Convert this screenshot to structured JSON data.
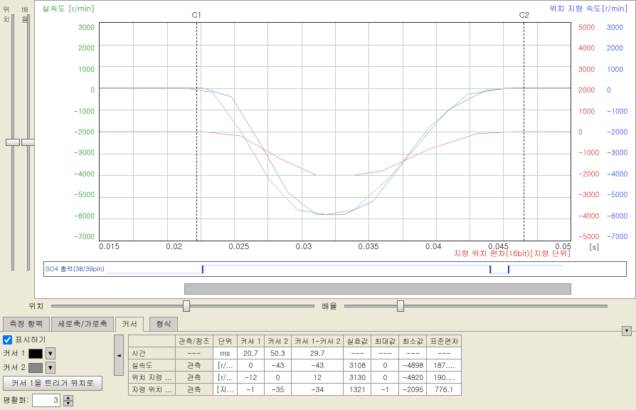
{
  "sliders": {
    "label1": "위치",
    "label2": "배율"
  },
  "chart": {
    "title_left": {
      "text": "실속도",
      "unit": "[r/min]",
      "color": "#0a8a0a"
    },
    "title_right": {
      "text": "위치 지령 속도",
      "unit": "[r/min]",
      "color": "#1030d0"
    },
    "y_left": {
      "color": "#0a8a0a",
      "ticks": [
        "3000",
        "2000",
        "1000",
        "0",
        "-1000",
        "-2000",
        "-3000",
        "-4000",
        "-5000",
        "-6000",
        "-7000"
      ]
    },
    "y_right1": {
      "color": "#d01010",
      "ticks": [
        "5000",
        "4000",
        "3000",
        "2000",
        "1000",
        "0",
        "-1000",
        "-2000",
        "-3000",
        "-4000",
        "-5000"
      ]
    },
    "y_right2": {
      "color": "#1030d0",
      "ticks": [
        "3000",
        "2000",
        "1000",
        "0",
        "-1000",
        "-2000",
        "-3000",
        "-4000",
        "-5000",
        "-6000",
        "-7000"
      ]
    },
    "x": {
      "ticks": [
        "0.015",
        "0.02",
        "0.025",
        "0.03",
        "0.035",
        "0.04",
        "0.045",
        "0.05"
      ],
      "unit": "[s]"
    },
    "cursors": {
      "c1": {
        "label": "C1",
        "pos_pct": 20.5
      },
      "c2": {
        "label": "C2",
        "pos_pct": 90
      }
    },
    "bottom_label": {
      "l1": "지령 위치 편차(16bit)",
      "l2": "[지령 단위]",
      "color": "#d01010"
    },
    "strip_label": "SO4 출력(38/39pin)",
    "curves": {
      "green": {
        "color": "#0a8a0a",
        "points": [
          [
            0,
            30
          ],
          [
            18,
            30
          ],
          [
            24,
            32
          ],
          [
            30,
            50
          ],
          [
            36,
            72
          ],
          [
            42,
            86
          ],
          [
            48,
            88
          ],
          [
            54,
            86
          ],
          [
            62,
            70
          ],
          [
            70,
            48
          ],
          [
            78,
            33
          ],
          [
            86,
            30
          ],
          [
            100,
            30
          ]
        ]
      },
      "blue": {
        "color": "#1030d0",
        "points": [
          [
            0,
            30
          ],
          [
            22,
            30
          ],
          [
            28,
            34
          ],
          [
            34,
            55
          ],
          [
            40,
            78
          ],
          [
            46,
            88
          ],
          [
            52,
            88
          ],
          [
            58,
            82
          ],
          [
            66,
            60
          ],
          [
            74,
            40
          ],
          [
            82,
            31
          ],
          [
            88,
            30
          ],
          [
            100,
            30
          ]
        ]
      },
      "red": {
        "color": "#d01010",
        "points": [
          [
            0,
            50
          ],
          [
            22,
            50
          ],
          [
            30,
            52
          ],
          [
            38,
            62
          ],
          [
            46,
            70
          ],
          [
            54,
            70
          ],
          [
            60,
            68
          ],
          [
            70,
            58
          ],
          [
            80,
            51
          ],
          [
            88,
            50
          ],
          [
            100,
            50
          ]
        ]
      }
    }
  },
  "hslider": {
    "label1": "위치",
    "label2": "배율"
  },
  "tabs": {
    "t1": "측정 항목",
    "t2": "세로축/가로축",
    "t3": "커서",
    "t4": "형식",
    "active": 2
  },
  "leftctrl": {
    "show": "표시하기",
    "cursor1": "커서 1",
    "c1color": "#000000",
    "cursor2": "커서 2",
    "c2color": "#888888",
    "trigger_btn": "커서 1을 트리거 위치로",
    "smooth": "평활화:",
    "smooth_val": "3"
  },
  "table": {
    "headers": [
      "",
      "관측/참조",
      "단위",
      "커서 1",
      "커서 2",
      "커서 1-커서 2",
      "실효값",
      "최대값",
      "최소값",
      "표준편차"
    ],
    "rows": [
      [
        "시간",
        "---",
        "ms",
        "20.7",
        "50.3",
        "29.7",
        "---",
        "---",
        "---",
        "---"
      ],
      [
        "실속도",
        "관측",
        "[r/...",
        "0",
        "-43",
        "-43",
        "3108",
        "0",
        "-4898",
        "187...."
      ],
      [
        "위치 지령 ...",
        "관측",
        "[r/...",
        "-12",
        "0",
        "12",
        "3130",
        "0",
        "-4920",
        "190...."
      ],
      [
        "지령 위치 ...",
        "관측",
        "[지...",
        "-1",
        "-35",
        "-34",
        "1321",
        "-1",
        "-2095",
        "776.1"
      ]
    ]
  }
}
